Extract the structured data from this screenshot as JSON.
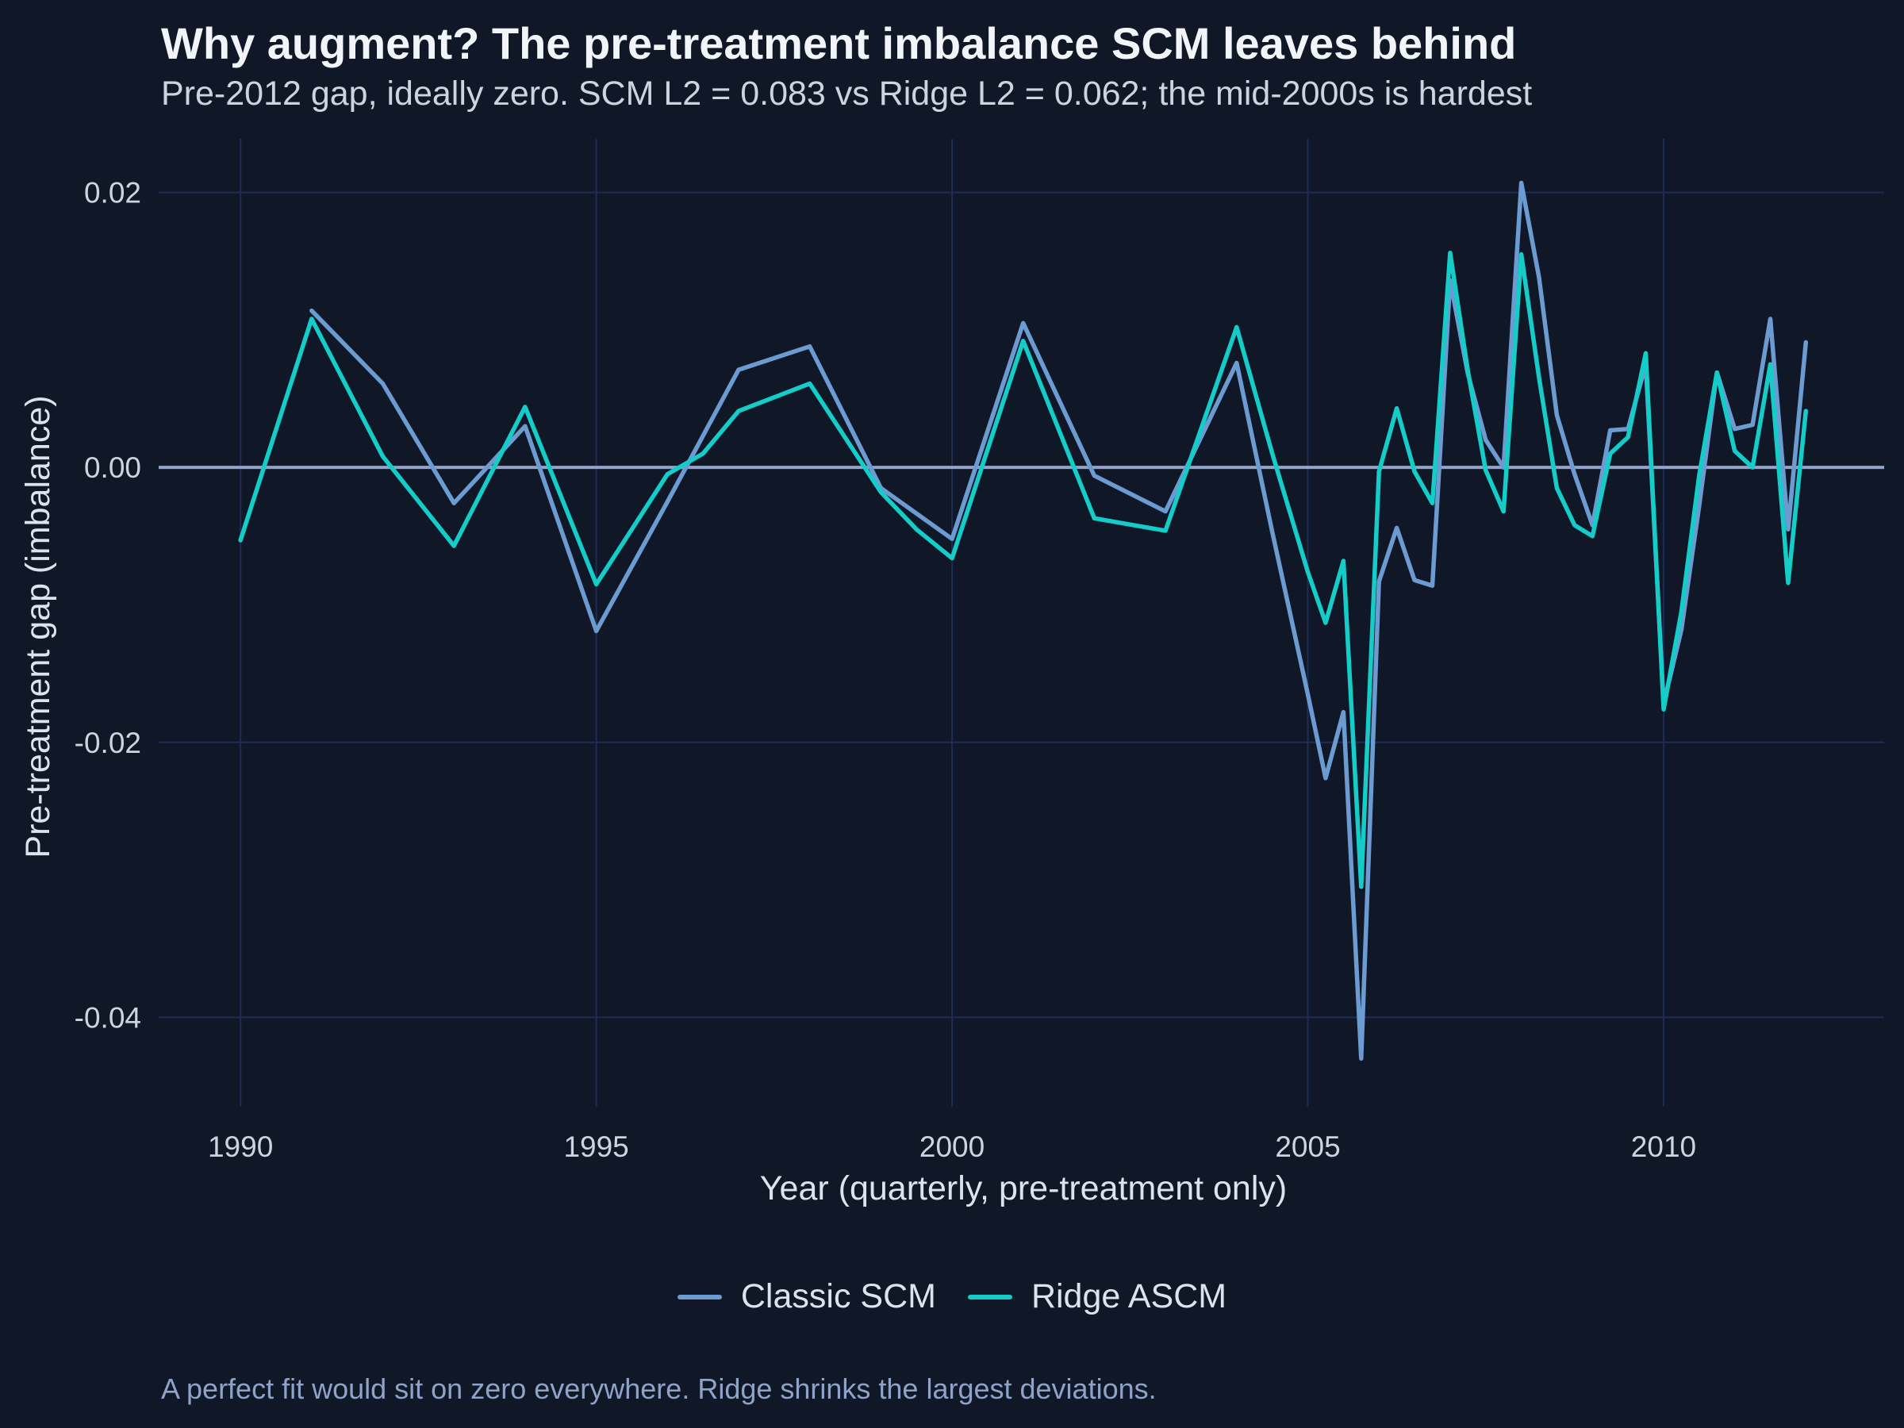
{
  "header": {
    "title": "Why augment? The pre-treatment imbalance SCM leaves behind",
    "subtitle": "Pre-2012 gap, ideally zero. SCM L2 = 0.083 vs Ridge L2 = 0.062; the mid-2000s is hardest"
  },
  "footer": {
    "caption": "A perfect fit would sit on zero everywhere. Ridge shrinks the largest deviations."
  },
  "colors": {
    "background": "#101828",
    "grid": "#1e2c55",
    "zero_line": "#94a3c8",
    "classic_scm": "#6b9bd1",
    "ridge_ascm": "#14ccc8"
  },
  "chart_data": {
    "type": "line",
    "title": "Why augment? The pre-treatment imbalance SCM leaves behind",
    "subtitle": "Pre-2012 gap, ideally zero. SCM L2 = 0.083 vs Ridge L2 = 0.062; the mid-2000s is hardest",
    "xlabel": "Year (quarterly, pre-treatment only)",
    "ylabel": "Pre-treatment gap (imbalance)",
    "xlim": [
      1988.85,
      2013.1
    ],
    "ylim": [
      -0.0465,
      0.0239
    ],
    "x_ticks": [
      1990,
      1995,
      2000,
      2005,
      2010
    ],
    "x_tick_labels": [
      "1990",
      "1995",
      "2000",
      "2005",
      "2010"
    ],
    "y_ticks": [
      0.02,
      0.0,
      -0.02,
      -0.04
    ],
    "y_tick_labels": [
      "0.02",
      "0.00",
      "-0.02",
      "-0.04"
    ],
    "grid": true,
    "reference_line_y": 0,
    "legend_position": "bottom",
    "series": [
      {
        "name": "Classic SCM",
        "color": "#6b9bd1",
        "x": [
          1991.0,
          1992.0,
          1993.0,
          1994.0,
          1995.0,
          1996.0,
          1997.0,
          1998.0,
          1999.0,
          2000.0,
          2001.0,
          2002.0,
          2003.0,
          2004.0,
          2004.5,
          2005.0,
          2005.25,
          2005.5,
          2005.75,
          2006.0,
          2006.25,
          2006.5,
          2006.75,
          2007.0,
          2007.25,
          2007.5,
          2007.75,
          2008.0,
          2008.25,
          2008.5,
          2008.75,
          2009.0,
          2009.25,
          2009.5,
          2009.75,
          2010.0,
          2010.25,
          2010.5,
          2010.75,
          2011.0,
          2011.25,
          2011.5,
          2011.75,
          2012.0
        ],
        "y": [
          0.0114,
          0.0061,
          -0.0026,
          0.003,
          -0.0119,
          -0.0025,
          0.0071,
          0.0088,
          -0.0015,
          -0.0052,
          0.0105,
          -0.0006,
          -0.0032,
          0.0076,
          -0.0047,
          -0.0165,
          -0.0226,
          -0.0178,
          -0.043,
          -0.0083,
          -0.0044,
          -0.0082,
          -0.0086,
          0.0136,
          0.0068,
          0.002,
          0.0,
          0.0207,
          0.0138,
          0.0038,
          -0.0005,
          -0.0042,
          0.0027,
          0.0028,
          0.0075,
          -0.0172,
          -0.0118,
          -0.0028,
          0.0069,
          0.0028,
          0.0031,
          0.0108,
          -0.0045,
          0.0091
        ]
      },
      {
        "name": "Ridge ASCM",
        "color": "#14ccc8",
        "x": [
          1990.0,
          1991.0,
          1992.0,
          1993.0,
          1994.0,
          1995.0,
          1996.0,
          1996.5,
          1997.0,
          1998.0,
          1999.0,
          1999.5,
          2000.0,
          2001.0,
          2002.0,
          2003.0,
          2004.0,
          2004.5,
          2005.0,
          2005.25,
          2005.5,
          2005.75,
          2006.0,
          2006.25,
          2006.5,
          2006.75,
          2007.0,
          2007.25,
          2007.5,
          2007.75,
          2008.0,
          2008.25,
          2008.5,
          2008.75,
          2009.0,
          2009.25,
          2009.5,
          2009.75,
          2010.0,
          2010.25,
          2010.5,
          2010.75,
          2011.0,
          2011.25,
          2011.5,
          2011.75,
          2012.0
        ],
        "y": [
          -0.0053,
          0.0108,
          0.0008,
          -0.0057,
          0.0044,
          -0.0085,
          -0.0005,
          0.001,
          0.0041,
          0.0061,
          -0.0018,
          -0.0045,
          -0.0066,
          0.0092,
          -0.0037,
          -0.0046,
          0.0102,
          0.001,
          -0.0076,
          -0.0113,
          -0.0068,
          -0.0305,
          -0.0003,
          0.0043,
          -0.0003,
          -0.0026,
          0.0156,
          0.007,
          -0.0002,
          -0.0032,
          0.0155,
          0.0065,
          -0.0015,
          -0.0042,
          -0.005,
          0.001,
          0.0022,
          0.0083,
          -0.0176,
          -0.0105,
          -0.0006,
          0.0069,
          0.0012,
          0.0,
          0.0075,
          -0.0084,
          0.0041
        ]
      }
    ]
  }
}
